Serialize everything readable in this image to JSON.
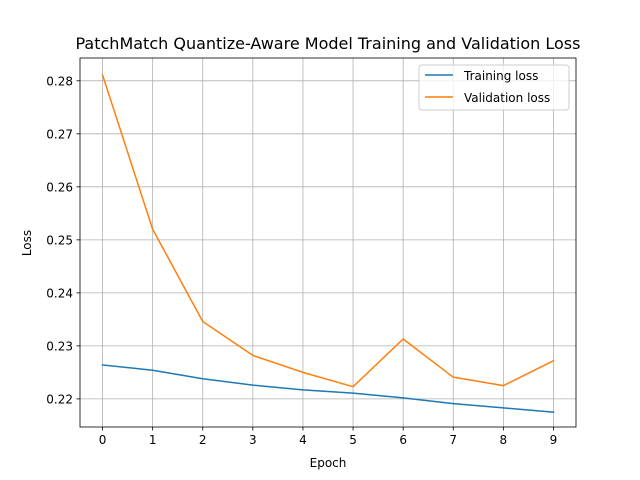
{
  "chart_data": {
    "type": "line",
    "title": "PatchMatch Quantize-Aware Model Training and Validation Loss",
    "xlabel": "Epoch",
    "ylabel": "Loss",
    "x": [
      0,
      1,
      2,
      3,
      4,
      5,
      6,
      7,
      8,
      9
    ],
    "xticks": [
      "0",
      "1",
      "2",
      "3",
      "4",
      "5",
      "6",
      "7",
      "8",
      "9"
    ],
    "yticks": [
      "0.22",
      "0.23",
      "0.24",
      "0.25",
      "0.26",
      "0.27",
      "0.28"
    ],
    "ytick_values": [
      0.22,
      0.23,
      0.24,
      0.25,
      0.26,
      0.27,
      0.28
    ],
    "xlim": [
      -0.45,
      9.45
    ],
    "ylim": [
      0.2147,
      0.2843
    ],
    "grid": true,
    "legend_position": "upper-right",
    "series": [
      {
        "name": "Training loss",
        "color": "#1f77b4",
        "values": [
          0.2264,
          0.2254,
          0.2238,
          0.2226,
          0.2217,
          0.2211,
          0.2202,
          0.2191,
          0.2183,
          0.2175
        ]
      },
      {
        "name": "Validation loss",
        "color": "#ff7f0e",
        "values": [
          0.2811,
          0.252,
          0.2346,
          0.2282,
          0.225,
          0.2223,
          0.2313,
          0.2241,
          0.2225,
          0.2272
        ]
      }
    ]
  }
}
